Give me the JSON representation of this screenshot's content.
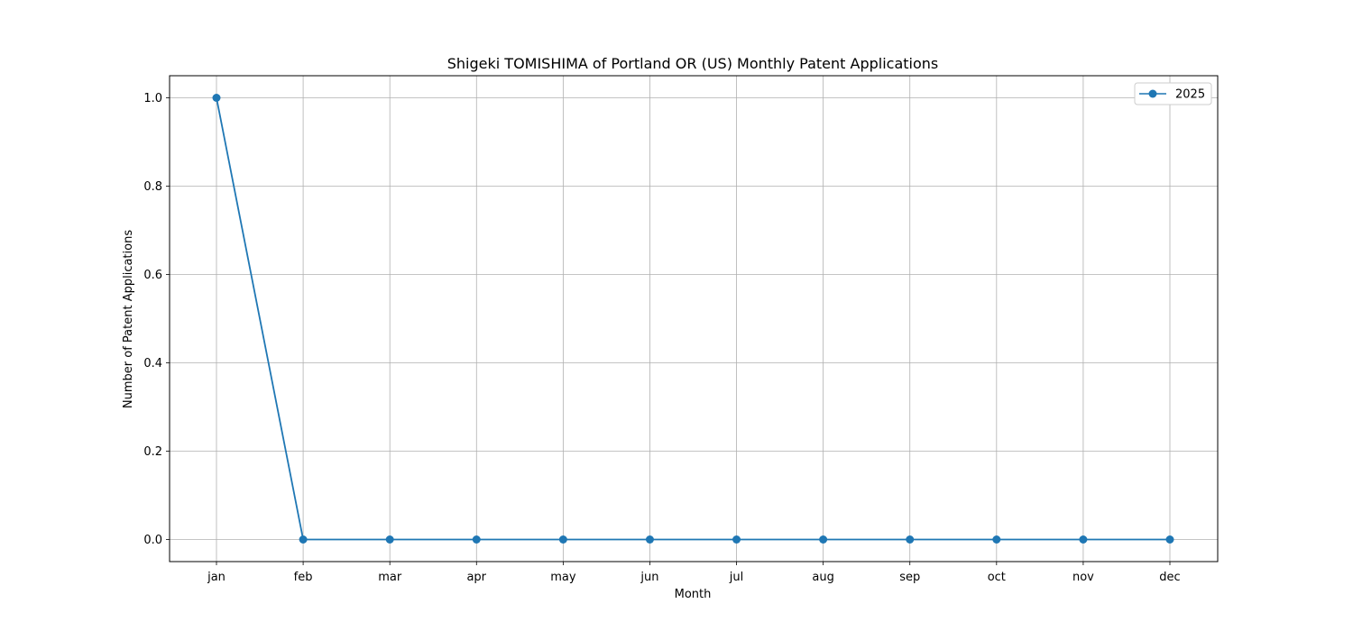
{
  "chart_data": {
    "type": "line",
    "title": "Shigeki TOMISHIMA of Portland OR (US) Monthly Patent Applications",
    "xlabel": "Month",
    "ylabel": "Number of Patent Applications",
    "categories": [
      "jan",
      "feb",
      "mar",
      "apr",
      "may",
      "jun",
      "jul",
      "aug",
      "sep",
      "oct",
      "nov",
      "dec"
    ],
    "ylim": [
      -0.05,
      1.05
    ],
    "yticks": [
      0.0,
      0.2,
      0.4,
      0.6,
      0.8,
      1.0
    ],
    "ytick_labels": [
      "0.0",
      "0.2",
      "0.4",
      "0.6",
      "0.8",
      "1.0"
    ],
    "grid": true,
    "legend_position": "top-right",
    "series": [
      {
        "name": "2025",
        "color": "#1f77b4",
        "marker": "circle",
        "values": [
          1,
          0,
          0,
          0,
          0,
          0,
          0,
          0,
          0,
          0,
          0,
          0
        ]
      }
    ]
  }
}
